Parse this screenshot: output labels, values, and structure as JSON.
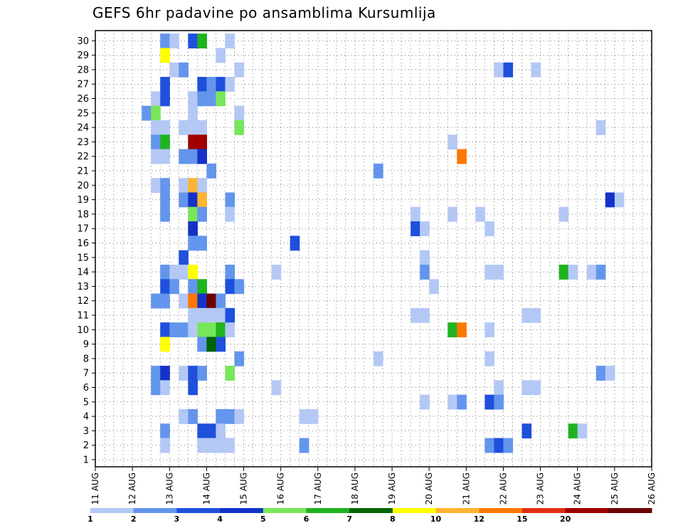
{
  "chart_data": {
    "type": "heatmap",
    "title": "GEFS 6hr padavine po ansamblima Kursumlija",
    "xlabel": "",
    "ylabel": "",
    "y_tick_labels": [
      "1",
      "2",
      "3",
      "4",
      "5",
      "6",
      "7",
      "8",
      "9",
      "10",
      "11",
      "12",
      "13",
      "14",
      "15",
      "16",
      "17",
      "18",
      "19",
      "20",
      "21",
      "22",
      "23",
      "24",
      "25",
      "26",
      "27",
      "28",
      "29",
      "30"
    ],
    "x_tick_labels": [
      "11 AUG",
      "12 AUG",
      "13 AUG",
      "14 AUG",
      "15 AUG",
      "16 AUG",
      "17 AUG",
      "18 AUG",
      "19 AUG",
      "20 AUG",
      "21 AUG",
      "22 AUG",
      "23 AUG",
      "24 AUG",
      "25 AUG",
      "26 AUG"
    ],
    "colorbar": {
      "labels": [
        "1",
        "2",
        "3",
        "4",
        "5",
        "6",
        "7",
        "8",
        "10",
        "12",
        "15",
        "20"
      ],
      "colors": [
        "#b4c8f5",
        "#6495ed",
        "#1e50dc",
        "#1432c8",
        "#78e65a",
        "#1eb41e",
        "#006400",
        "#ffff00",
        "#ffb432",
        "#ff7800",
        "#e12d0f",
        "#a00000",
        "#6e0000"
      ]
    },
    "x_start_date": "11 AUG",
    "step_hours": 6,
    "cells": [
      {
        "m": 30,
        "t": 8,
        "c": 2
      },
      {
        "m": 30,
        "t": 9,
        "c": 1
      },
      {
        "m": 30,
        "t": 11,
        "c": 3
      },
      {
        "m": 30,
        "t": 12,
        "c": 6
      },
      {
        "m": 30,
        "t": 15,
        "c": 1
      },
      {
        "m": 29,
        "t": 8,
        "c": 8
      },
      {
        "m": 29,
        "t": 14,
        "c": 1
      },
      {
        "m": 28,
        "t": 9,
        "c": 1
      },
      {
        "m": 28,
        "t": 10,
        "c": 2
      },
      {
        "m": 28,
        "t": 16,
        "c": 1
      },
      {
        "m": 28,
        "t": 44,
        "c": 1
      },
      {
        "m": 28,
        "t": 45,
        "c": 3
      },
      {
        "m": 28,
        "t": 48,
        "c": 1
      },
      {
        "m": 27,
        "t": 8,
        "c": 3
      },
      {
        "m": 27,
        "t": 12,
        "c": 3
      },
      {
        "m": 27,
        "t": 13,
        "c": 2
      },
      {
        "m": 27,
        "t": 14,
        "c": 3
      },
      {
        "m": 27,
        "t": 15,
        "c": 1
      },
      {
        "m": 26,
        "t": 7,
        "c": 1
      },
      {
        "m": 26,
        "t": 8,
        "c": 3
      },
      {
        "m": 26,
        "t": 11,
        "c": 1
      },
      {
        "m": 26,
        "t": 12,
        "c": 2
      },
      {
        "m": 26,
        "t": 13,
        "c": 2
      },
      {
        "m": 26,
        "t": 14,
        "c": 5
      },
      {
        "m": 25,
        "t": 6,
        "c": 2
      },
      {
        "m": 25,
        "t": 7,
        "c": 5
      },
      {
        "m": 25,
        "t": 11,
        "c": 1
      },
      {
        "m": 25,
        "t": 16,
        "c": 1
      },
      {
        "m": 24,
        "t": 7,
        "c": 1
      },
      {
        "m": 24,
        "t": 8,
        "c": 1
      },
      {
        "m": 24,
        "t": 10,
        "c": 1
      },
      {
        "m": 24,
        "t": 11,
        "c": 1
      },
      {
        "m": 24,
        "t": 12,
        "c": 1
      },
      {
        "m": 24,
        "t": 16,
        "c": 5
      },
      {
        "m": 24,
        "t": 55,
        "c": 1
      },
      {
        "m": 23,
        "t": 7,
        "c": 2
      },
      {
        "m": 23,
        "t": 8,
        "c": 6
      },
      {
        "m": 23,
        "t": 11,
        "c": 12
      },
      {
        "m": 23,
        "t": 12,
        "c": 12
      },
      {
        "m": 23,
        "t": 39,
        "c": 1
      },
      {
        "m": 22,
        "t": 7,
        "c": 1
      },
      {
        "m": 22,
        "t": 8,
        "c": 1
      },
      {
        "m": 22,
        "t": 10,
        "c": 2
      },
      {
        "m": 22,
        "t": 11,
        "c": 2
      },
      {
        "m": 22,
        "t": 12,
        "c": 4
      },
      {
        "m": 22,
        "t": 40,
        "c": 10
      },
      {
        "m": 21,
        "t": 13,
        "c": 2
      },
      {
        "m": 21,
        "t": 31,
        "c": 2
      },
      {
        "m": 20,
        "t": 7,
        "c": 1
      },
      {
        "m": 20,
        "t": 8,
        "c": 2
      },
      {
        "m": 20,
        "t": 10,
        "c": 1
      },
      {
        "m": 20,
        "t": 11,
        "c": 9
      },
      {
        "m": 20,
        "t": 12,
        "c": 1
      },
      {
        "m": 19,
        "t": 8,
        "c": 2
      },
      {
        "m": 19,
        "t": 10,
        "c": 2
      },
      {
        "m": 19,
        "t": 11,
        "c": 4
      },
      {
        "m": 19,
        "t": 12,
        "c": 9
      },
      {
        "m": 19,
        "t": 15,
        "c": 2
      },
      {
        "m": 19,
        "t": 56,
        "c": 4
      },
      {
        "m": 19,
        "t": 57,
        "c": 1
      },
      {
        "m": 18,
        "t": 8,
        "c": 2
      },
      {
        "m": 18,
        "t": 11,
        "c": 5
      },
      {
        "m": 18,
        "t": 12,
        "c": 2
      },
      {
        "m": 18,
        "t": 15,
        "c": 1
      },
      {
        "m": 18,
        "t": 35,
        "c": 1
      },
      {
        "m": 18,
        "t": 39,
        "c": 1
      },
      {
        "m": 18,
        "t": 42,
        "c": 1
      },
      {
        "m": 18,
        "t": 51,
        "c": 1
      },
      {
        "m": 17,
        "t": 11,
        "c": 4
      },
      {
        "m": 17,
        "t": 35,
        "c": 3
      },
      {
        "m": 17,
        "t": 36,
        "c": 1
      },
      {
        "m": 17,
        "t": 43,
        "c": 1
      },
      {
        "m": 16,
        "t": 11,
        "c": 2
      },
      {
        "m": 16,
        "t": 12,
        "c": 2
      },
      {
        "m": 16,
        "t": 22,
        "c": 3
      },
      {
        "m": 15,
        "t": 10,
        "c": 3
      },
      {
        "m": 15,
        "t": 36,
        "c": 1
      },
      {
        "m": 14,
        "t": 8,
        "c": 2
      },
      {
        "m": 14,
        "t": 9,
        "c": 1
      },
      {
        "m": 14,
        "t": 10,
        "c": 1
      },
      {
        "m": 14,
        "t": 11,
        "c": 8
      },
      {
        "m": 14,
        "t": 15,
        "c": 2
      },
      {
        "m": 14,
        "t": 20,
        "c": 1
      },
      {
        "m": 14,
        "t": 36,
        "c": 2
      },
      {
        "m": 14,
        "t": 43,
        "c": 1
      },
      {
        "m": 14,
        "t": 44,
        "c": 1
      },
      {
        "m": 14,
        "t": 51,
        "c": 6
      },
      {
        "m": 14,
        "t": 52,
        "c": 1
      },
      {
        "m": 14,
        "t": 54,
        "c": 1
      },
      {
        "m": 14,
        "t": 55,
        "c": 2
      },
      {
        "m": 13,
        "t": 8,
        "c": 3
      },
      {
        "m": 13,
        "t": 9,
        "c": 2
      },
      {
        "m": 13,
        "t": 11,
        "c": 2
      },
      {
        "m": 13,
        "t": 12,
        "c": 6
      },
      {
        "m": 13,
        "t": 15,
        "c": 3
      },
      {
        "m": 13,
        "t": 16,
        "c": 2
      },
      {
        "m": 13,
        "t": 37,
        "c": 1
      },
      {
        "m": 12,
        "t": 7,
        "c": 2
      },
      {
        "m": 12,
        "t": 8,
        "c": 2
      },
      {
        "m": 12,
        "t": 10,
        "c": 1
      },
      {
        "m": 12,
        "t": 11,
        "c": 10
      },
      {
        "m": 12,
        "t": 12,
        "c": 4
      },
      {
        "m": 12,
        "t": 13,
        "c": 13
      },
      {
        "m": 12,
        "t": 14,
        "c": 2
      },
      {
        "m": 11,
        "t": 11,
        "c": 1
      },
      {
        "m": 11,
        "t": 12,
        "c": 1
      },
      {
        "m": 11,
        "t": 13,
        "c": 1
      },
      {
        "m": 11,
        "t": 14,
        "c": 1
      },
      {
        "m": 11,
        "t": 15,
        "c": 3
      },
      {
        "m": 11,
        "t": 35,
        "c": 1
      },
      {
        "m": 11,
        "t": 36,
        "c": 1
      },
      {
        "m": 11,
        "t": 47,
        "c": 1
      },
      {
        "m": 11,
        "t": 48,
        "c": 1
      },
      {
        "m": 10,
        "t": 8,
        "c": 3
      },
      {
        "m": 10,
        "t": 9,
        "c": 2
      },
      {
        "m": 10,
        "t": 10,
        "c": 2
      },
      {
        "m": 10,
        "t": 11,
        "c": 1
      },
      {
        "m": 10,
        "t": 12,
        "c": 5
      },
      {
        "m": 10,
        "t": 13,
        "c": 5
      },
      {
        "m": 10,
        "t": 14,
        "c": 6
      },
      {
        "m": 10,
        "t": 15,
        "c": 1
      },
      {
        "m": 10,
        "t": 39,
        "c": 6
      },
      {
        "m": 10,
        "t": 40,
        "c": 10
      },
      {
        "m": 10,
        "t": 43,
        "c": 1
      },
      {
        "m": 9,
        "t": 8,
        "c": 8
      },
      {
        "m": 9,
        "t": 12,
        "c": 2
      },
      {
        "m": 9,
        "t": 13,
        "c": 7
      },
      {
        "m": 9,
        "t": 14,
        "c": 3
      },
      {
        "m": 8,
        "t": 16,
        "c": 2
      },
      {
        "m": 8,
        "t": 31,
        "c": 1
      },
      {
        "m": 8,
        "t": 43,
        "c": 1
      },
      {
        "m": 7,
        "t": 7,
        "c": 2
      },
      {
        "m": 7,
        "t": 8,
        "c": 4
      },
      {
        "m": 7,
        "t": 10,
        "c": 1
      },
      {
        "m": 7,
        "t": 11,
        "c": 3
      },
      {
        "m": 7,
        "t": 12,
        "c": 2
      },
      {
        "m": 7,
        "t": 15,
        "c": 5
      },
      {
        "m": 7,
        "t": 55,
        "c": 2
      },
      {
        "m": 7,
        "t": 56,
        "c": 1
      },
      {
        "m": 6,
        "t": 7,
        "c": 2
      },
      {
        "m": 6,
        "t": 8,
        "c": 1
      },
      {
        "m": 6,
        "t": 11,
        "c": 3
      },
      {
        "m": 6,
        "t": 20,
        "c": 1
      },
      {
        "m": 6,
        "t": 44,
        "c": 1
      },
      {
        "m": 6,
        "t": 47,
        "c": 1
      },
      {
        "m": 6,
        "t": 48,
        "c": 1
      },
      {
        "m": 5,
        "t": 36,
        "c": 1
      },
      {
        "m": 5,
        "t": 39,
        "c": 1
      },
      {
        "m": 5,
        "t": 40,
        "c": 2
      },
      {
        "m": 5,
        "t": 43,
        "c": 3
      },
      {
        "m": 5,
        "t": 44,
        "c": 2
      },
      {
        "m": 4,
        "t": 10,
        "c": 1
      },
      {
        "m": 4,
        "t": 11,
        "c": 2
      },
      {
        "m": 4,
        "t": 14,
        "c": 2
      },
      {
        "m": 4,
        "t": 15,
        "c": 2
      },
      {
        "m": 4,
        "t": 16,
        "c": 1
      },
      {
        "m": 4,
        "t": 23,
        "c": 1
      },
      {
        "m": 4,
        "t": 24,
        "c": 1
      },
      {
        "m": 3,
        "t": 8,
        "c": 2
      },
      {
        "m": 3,
        "t": 12,
        "c": 3
      },
      {
        "m": 3,
        "t": 13,
        "c": 3
      },
      {
        "m": 3,
        "t": 14,
        "c": 1
      },
      {
        "m": 3,
        "t": 47,
        "c": 3
      },
      {
        "m": 3,
        "t": 52,
        "c": 6
      },
      {
        "m": 3,
        "t": 53,
        "c": 1
      },
      {
        "m": 2,
        "t": 8,
        "c": 1
      },
      {
        "m": 2,
        "t": 12,
        "c": 1
      },
      {
        "m": 2,
        "t": 13,
        "c": 1
      },
      {
        "m": 2,
        "t": 14,
        "c": 1
      },
      {
        "m": 2,
        "t": 15,
        "c": 1
      },
      {
        "m": 2,
        "t": 23,
        "c": 2
      },
      {
        "m": 2,
        "t": 43,
        "c": 2
      },
      {
        "m": 2,
        "t": 44,
        "c": 3
      },
      {
        "m": 2,
        "t": 45,
        "c": 2
      }
    ]
  }
}
